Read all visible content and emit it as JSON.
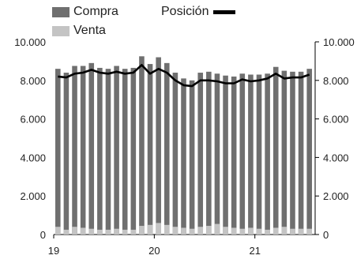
{
  "chart_data": {
    "type": "bar",
    "legend": [
      {
        "label": "Compra",
        "color": "#6f6f6f",
        "kind": "bar"
      },
      {
        "label": "Venta",
        "color": "#c4c4c4",
        "kind": "bar"
      },
      {
        "label": "Posición",
        "color": "#000000",
        "kind": "line"
      }
    ],
    "ylim": [
      0,
      10000
    ],
    "yticks_left": [
      "0",
      "2.000",
      "4.000",
      "6.000",
      "8.000",
      "10.000"
    ],
    "yticks_right": [
      "0",
      "2.000",
      "4.000",
      "6.000",
      "8.000",
      "10.000"
    ],
    "ytick_values": [
      0,
      2000,
      4000,
      6000,
      8000,
      10000
    ],
    "x_labels": [
      {
        "label": "19",
        "index": 0
      },
      {
        "label": "20",
        "index": 12
      },
      {
        "label": "21",
        "index": 24
      }
    ],
    "series": [
      {
        "name": "Compra",
        "values": [
          8600,
          8400,
          8750,
          8750,
          8900,
          8650,
          8600,
          8750,
          8600,
          8650,
          9250,
          8850,
          9200,
          8900,
          8400,
          8100,
          8000,
          8400,
          8450,
          8350,
          8250,
          8200,
          8350,
          8300,
          8300,
          8350,
          8700,
          8500,
          8450,
          8450,
          8600
        ]
      },
      {
        "name": "Venta",
        "values": [
          400,
          250,
          400,
          350,
          300,
          250,
          250,
          300,
          250,
          250,
          450,
          500,
          600,
          500,
          400,
          350,
          300,
          400,
          450,
          550,
          400,
          350,
          300,
          350,
          300,
          250,
          350,
          400,
          300,
          300,
          300
        ]
      },
      {
        "name": "Posición",
        "values": [
          8200,
          8150,
          8350,
          8400,
          8550,
          8400,
          8350,
          8450,
          8350,
          8400,
          8800,
          8350,
          8600,
          8400,
          8000,
          7750,
          7700,
          8000,
          8000,
          7950,
          7850,
          7850,
          8050,
          7950,
          8000,
          8100,
          8350,
          8100,
          8150,
          8150,
          8300
        ]
      }
    ]
  }
}
